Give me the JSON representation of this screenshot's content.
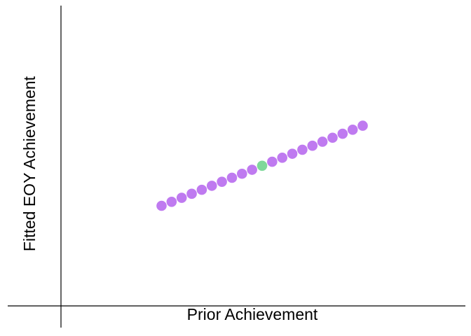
{
  "chart_data": {
    "type": "scatter",
    "title": "",
    "xlabel": "Prior Achievement",
    "ylabel": "Fitted EOY Achievement",
    "grid": false,
    "legend": "none",
    "xlim": [
      -1.0,
      3.0
    ],
    "ylim": [
      -1.0,
      2.0
    ],
    "x": [
      0.0,
      0.1,
      0.2,
      0.3,
      0.4,
      0.5,
      0.6,
      0.7,
      0.8,
      0.9,
      1.0,
      1.1,
      1.2,
      1.3,
      1.4,
      1.5,
      1.6,
      1.7,
      1.8,
      1.9,
      2.0
    ],
    "y": [
      0.0,
      0.04,
      0.08,
      0.12,
      0.16,
      0.2,
      0.24,
      0.28,
      0.32,
      0.36,
      0.4,
      0.44,
      0.48,
      0.52,
      0.56,
      0.6,
      0.64,
      0.68,
      0.72,
      0.76,
      0.8
    ],
    "highlight_index": 10,
    "colors": {
      "point": "#bf7af0",
      "highlight": "#7fd89a",
      "axis": "#000000"
    }
  }
}
